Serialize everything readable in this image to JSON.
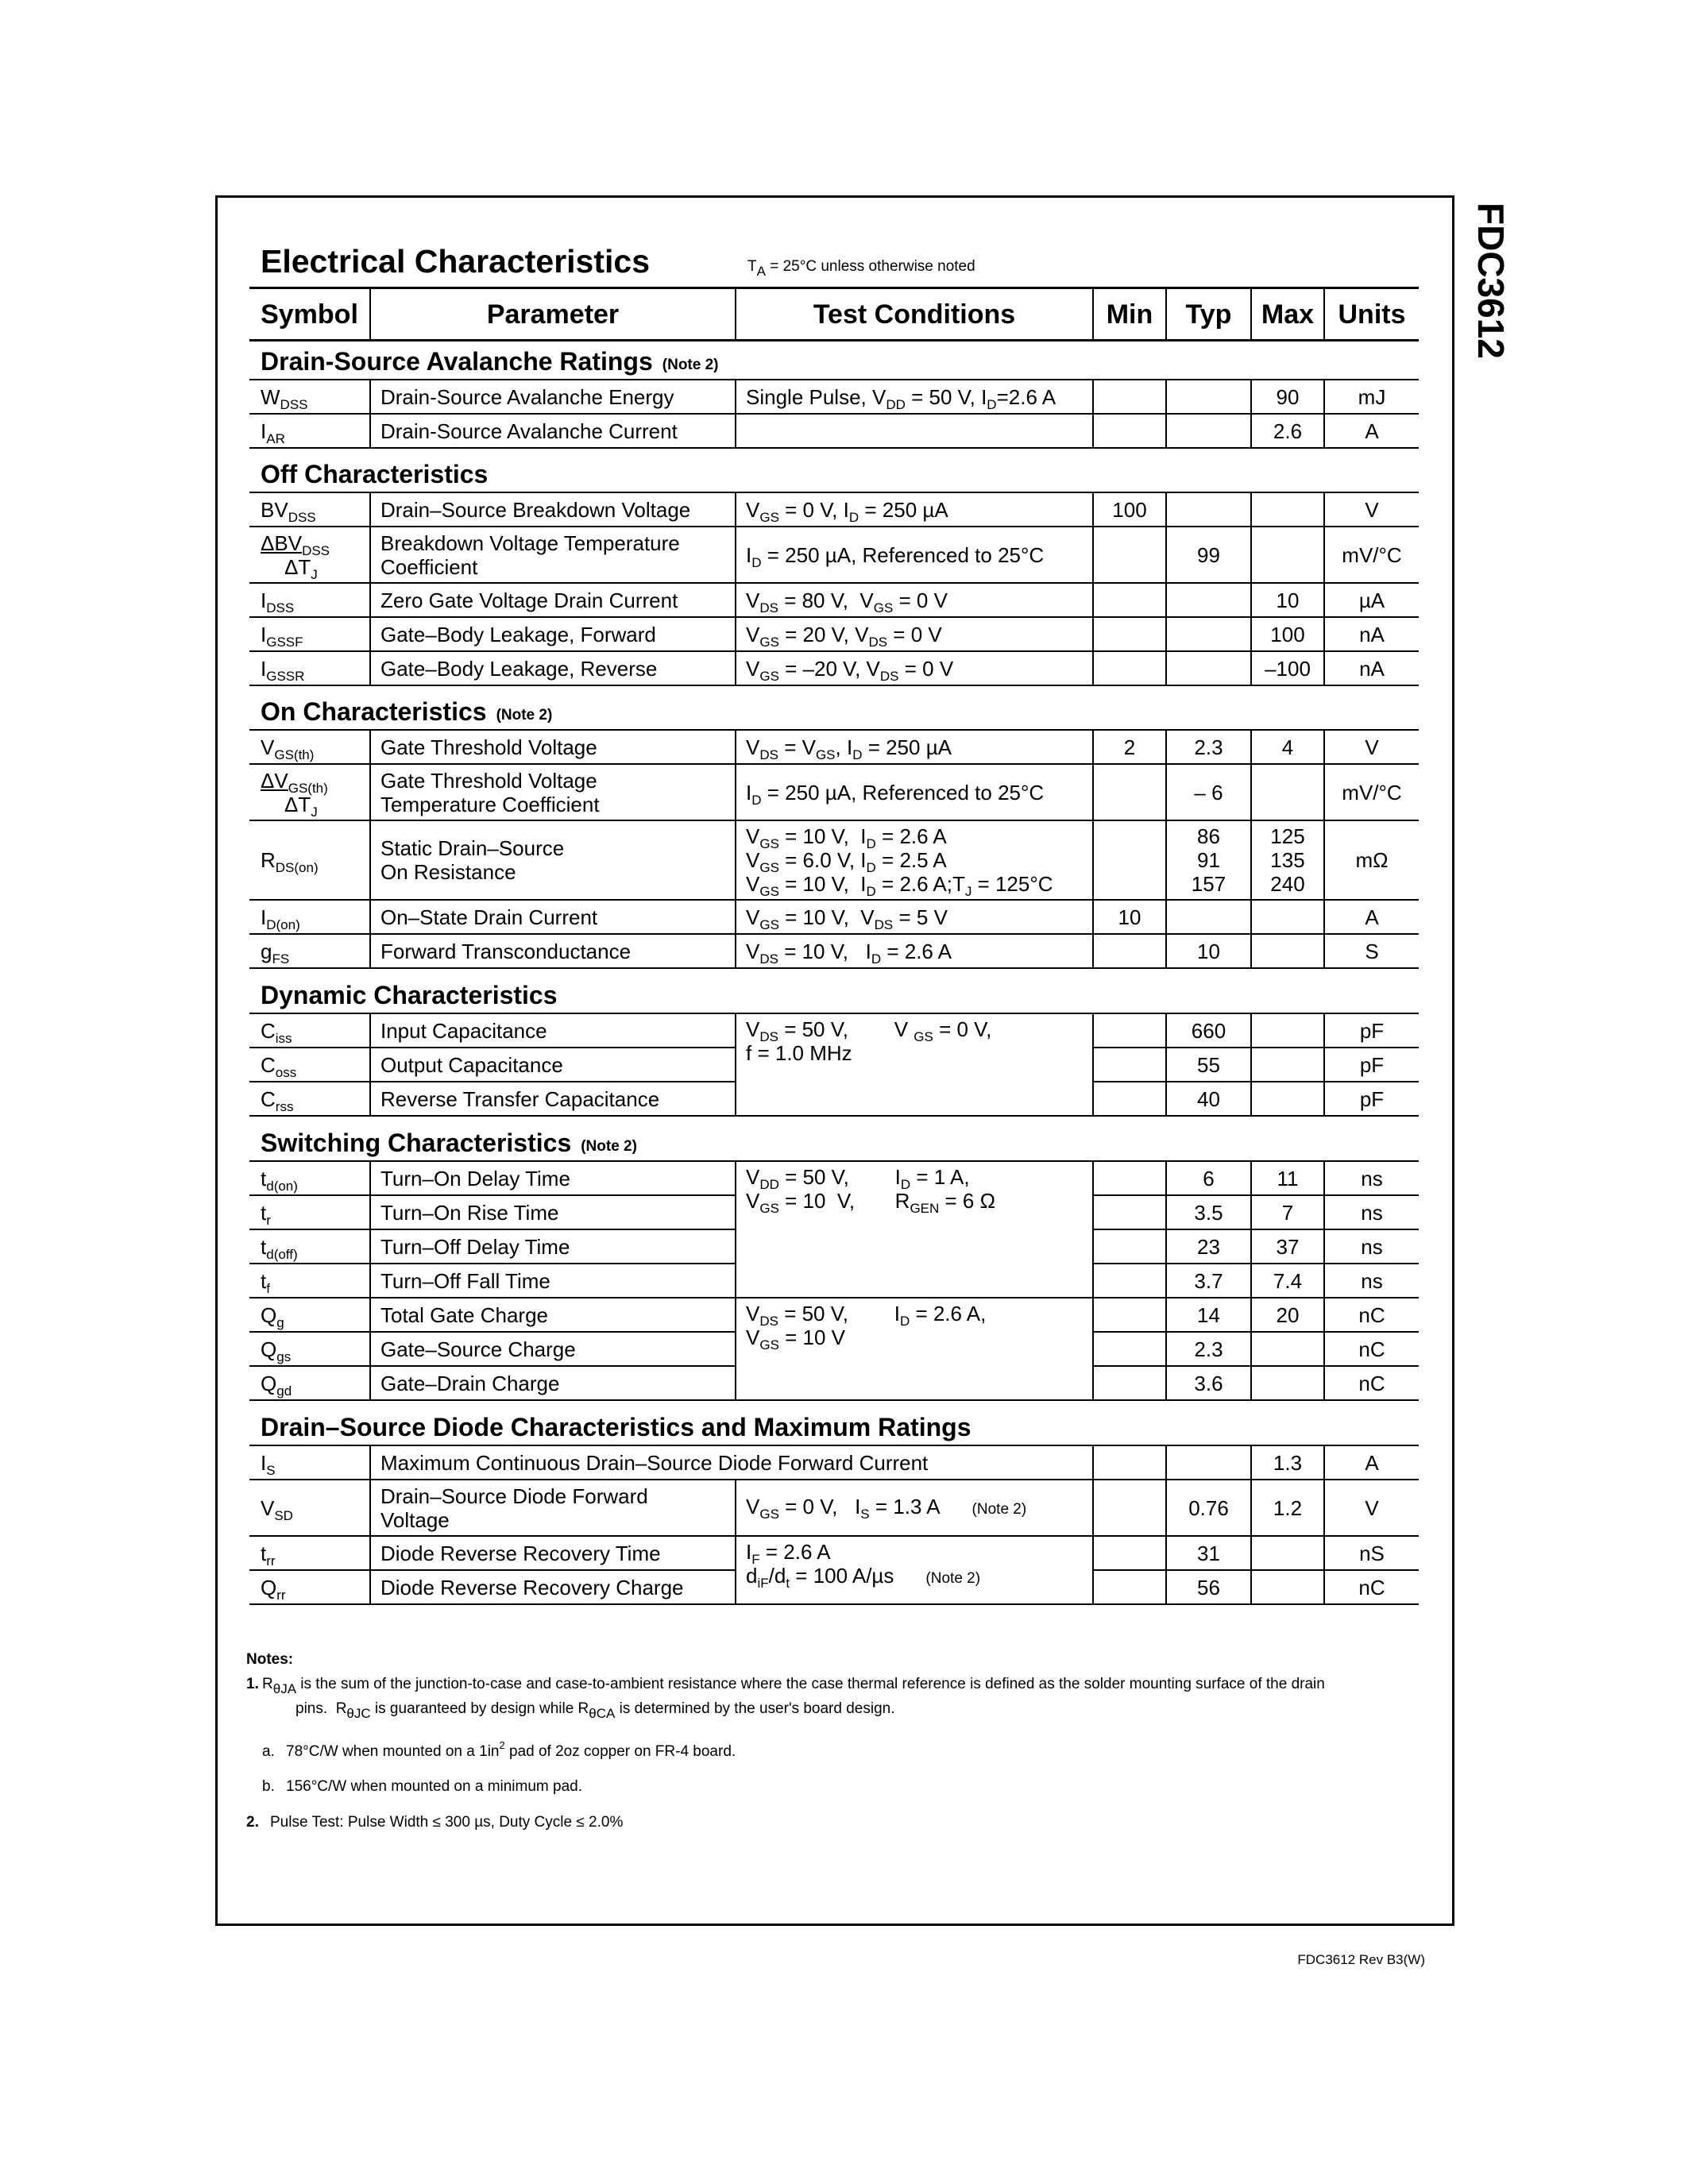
{
  "header": {
    "title": "Electrical Characteristics",
    "condition": [
      "T",
      {
        "sub": "A"
      },
      " = 25°C unless otherwise noted"
    ]
  },
  "side_label": "FDC3612",
  "table": {
    "columns": [
      "Symbol",
      "Parameter",
      "Test Conditions",
      "Min",
      "Typ",
      "Max",
      "Units"
    ],
    "sections": [
      {
        "title": "Drain-Source Avalanche Ratings",
        "note": "(Note 2)",
        "groups": [
          {
            "conditions": [
              "Single Pulse, V",
              {
                "sub": "DD"
              },
              " = 50 V, I",
              {
                "sub": "D"
              },
              "=2.6 A"
            ],
            "rows": [
              {
                "symbol": [
                  "W",
                  {
                    "sub": "DSS"
                  }
                ],
                "parameter": "Drain-Source Avalanche Energy",
                "max": 90,
                "units": "mJ"
              }
            ]
          },
          {
            "rows": [
              {
                "symbol": [
                  "I",
                  {
                    "sub": "AR"
                  }
                ],
                "parameter": "Drain-Source Avalanche Current",
                "max": 2.6,
                "units": "A"
              }
            ]
          }
        ]
      },
      {
        "title": "Off Characteristics",
        "groups": [
          {
            "conditions": [
              "V",
              {
                "sub": "GS"
              },
              " = 0 V, I",
              {
                "sub": "D"
              },
              " = 250 µA"
            ],
            "rows": [
              {
                "symbol": [
                  "BV",
                  {
                    "sub": "DSS"
                  }
                ],
                "parameter": "Drain–Source Breakdown Voltage",
                "min": 100,
                "units": "V"
              }
            ]
          },
          {
            "conditions": [
              "I",
              {
                "sub": "D"
              },
              " = 250 µA, Referenced to 25°C"
            ],
            "rows": [
              {
                "symbol": {
                  "lines": [
                    [
                      "ΔBV",
                      {
                        "sub": "DSS"
                      }
                    ],
                    [
                      "ΔT",
                      {
                        "sub": "J"
                      }
                    ]
                  ]
                },
                "parameter": {
                  "lines": [
                    "Breakdown Voltage Temperature",
                    "Coefficient"
                  ]
                },
                "typ": 99,
                "units": "mV/°C"
              }
            ]
          },
          {
            "conditions": [
              "V",
              {
                "sub": "DS"
              },
              " = 80 V,  V",
              {
                "sub": "GS"
              },
              " = 0 V"
            ],
            "rows": [
              {
                "symbol": [
                  "I",
                  {
                    "sub": "DSS"
                  }
                ],
                "parameter": "Zero Gate Voltage Drain Current",
                "max": 10,
                "units": "µA"
              }
            ]
          },
          {
            "conditions": [
              "V",
              {
                "sub": "GS"
              },
              " = 20 V, V",
              {
                "sub": "DS"
              },
              " = 0 V"
            ],
            "rows": [
              {
                "symbol": [
                  "I",
                  {
                    "sub": "GSSF"
                  }
                ],
                "parameter": "Gate–Body Leakage, Forward",
                "max": 100,
                "units": "nA"
              }
            ]
          },
          {
            "conditions": [
              "V",
              {
                "sub": "GS"
              },
              " = –20 V, V",
              {
                "sub": "DS"
              },
              " = 0 V"
            ],
            "rows": [
              {
                "symbol": [
                  "I",
                  {
                    "sub": "GSSR"
                  }
                ],
                "parameter": "Gate–Body Leakage, Reverse",
                "max": "–100",
                "units": "nA"
              }
            ]
          }
        ]
      },
      {
        "title": "On Characteristics",
        "note": "(Note 2)",
        "groups": [
          {
            "conditions": [
              "V",
              {
                "sub": "DS"
              },
              " = V",
              {
                "sub": "GS"
              },
              ", I",
              {
                "sub": "D"
              },
              " = 250 µA"
            ],
            "rows": [
              {
                "symbol": [
                  "V",
                  {
                    "sub": "GS(th)"
                  }
                ],
                "parameter": "Gate Threshold Voltage",
                "min": 2,
                "typ": 2.3,
                "max": 4,
                "units": "V"
              }
            ]
          },
          {
            "conditions": [
              "I",
              {
                "sub": "D"
              },
              " = 250 µA, Referenced to 25°C"
            ],
            "rows": [
              {
                "symbol": {
                  "lines": [
                    [
                      "ΔV",
                      {
                        "sub": "GS(th)"
                      }
                    ],
                    [
                      "ΔT",
                      {
                        "sub": "J"
                      }
                    ]
                  ]
                },
                "parameter": {
                  "lines": [
                    "Gate Threshold Voltage",
                    "Temperature Coefficient"
                  ]
                },
                "typ": "– 6",
                "units": "mV/°C"
              }
            ]
          },
          {
            "conditions": {
              "lines": [
                [
                  "V",
                  {
                    "sub": "GS"
                  },
                  " = 10 V,  I",
                  {
                    "sub": "D"
                  },
                  " = 2.6 A"
                ],
                [
                  "V",
                  {
                    "sub": "GS"
                  },
                  " = 6.0 V, I",
                  {
                    "sub": "D"
                  },
                  " = 2.5 A"
                ],
                [
                  "V",
                  {
                    "sub": "GS"
                  },
                  " = 10 V,  I",
                  {
                    "sub": "D"
                  },
                  " = 2.6 A;T",
                  {
                    "sub": "J"
                  },
                  " = 125°C"
                ]
              ]
            },
            "rows": [
              {
                "symbol": [
                  "R",
                  {
                    "sub": "DS(on)"
                  }
                ],
                "parameter": {
                  "lines": [
                    "Static Drain–Source",
                    "On Resistance"
                  ]
                },
                "typ": {
                  "lines": [
                    86,
                    91,
                    157
                  ]
                },
                "max": {
                  "lines": [
                    125,
                    135,
                    240
                  ]
                },
                "units": "mΩ"
              }
            ]
          },
          {
            "conditions": [
              "V",
              {
                "sub": "GS"
              },
              " = 10 V,  V",
              {
                "sub": "DS"
              },
              " = 5 V"
            ],
            "rows": [
              {
                "symbol": [
                  "I",
                  {
                    "sub": "D(on)"
                  }
                ],
                "parameter": "On–State Drain Current",
                "min": 10,
                "units": "A"
              }
            ]
          },
          {
            "conditions": [
              "V",
              {
                "sub": "DS"
              },
              " = 10 V,   I",
              {
                "sub": "D"
              },
              " = 2.6 A"
            ],
            "rows": [
              {
                "symbol": [
                  "g",
                  {
                    "sub": "FS"
                  }
                ],
                "parameter": "Forward Transconductance",
                "typ": 10,
                "units": "S"
              }
            ]
          }
        ]
      },
      {
        "title": "Dynamic Characteristics",
        "groups": [
          {
            "conditions": {
              "lines": [
                [
                  "V",
                  {
                    "sub": "DS"
                  },
                  " = 50 V,        V ",
                  {
                    "sub": "GS"
                  },
                  " = 0 V,"
                ],
                "f = 1.0 MHz"
              ]
            },
            "rows": [
              {
                "symbol": [
                  "C",
                  {
                    "sub": "iss"
                  }
                ],
                "parameter": "Input Capacitance",
                "typ": 660,
                "units": "pF"
              },
              {
                "symbol": [
                  "C",
                  {
                    "sub": "oss"
                  }
                ],
                "parameter": "Output Capacitance",
                "typ": 55,
                "units": "pF"
              },
              {
                "symbol": [
                  "C",
                  {
                    "sub": "rss"
                  }
                ],
                "parameter": "Reverse Transfer Capacitance",
                "typ": 40,
                "units": "pF"
              }
            ]
          }
        ]
      },
      {
        "title": "Switching Characteristics",
        "note": "(Note 2)",
        "groups": [
          {
            "conditions": {
              "lines": [
                [
                  "V",
                  {
                    "sub": "DD"
                  },
                  " = 50 V,        I",
                  {
                    "sub": "D"
                  },
                  " = 1 A,"
                ],
                [
                  "V",
                  {
                    "sub": "GS"
                  },
                  " = 10  V,       R",
                  {
                    "sub": "GEN"
                  },
                  " = 6 Ω"
                ]
              ]
            },
            "rows": [
              {
                "symbol": [
                  "t",
                  {
                    "sub": "d(on)"
                  }
                ],
                "parameter": "Turn–On Delay Time",
                "typ": 6,
                "max": 11,
                "units": "ns"
              },
              {
                "symbol": [
                  "t",
                  {
                    "sub": "r"
                  }
                ],
                "parameter": "Turn–On Rise Time",
                "typ": 3.5,
                "max": 7,
                "units": "ns"
              },
              {
                "symbol": [
                  "t",
                  {
                    "sub": "d(off)"
                  }
                ],
                "parameter": "Turn–Off Delay Time",
                "typ": 23,
                "max": 37,
                "units": "ns"
              },
              {
                "symbol": [
                  "t",
                  {
                    "sub": "f"
                  }
                ],
                "parameter": "Turn–Off Fall Time",
                "typ": 3.7,
                "max": 7.4,
                "units": "ns"
              }
            ]
          },
          {
            "conditions": {
              "lines": [
                [
                  "V",
                  {
                    "sub": "DS"
                  },
                  " = 50 V,        I",
                  {
                    "sub": "D"
                  },
                  " = 2.6 A,"
                ],
                [
                  "V",
                  {
                    "sub": "GS"
                  },
                  " = 10 V"
                ]
              ]
            },
            "rows": [
              {
                "symbol": [
                  "Q",
                  {
                    "sub": "g"
                  }
                ],
                "parameter": "Total Gate Charge",
                "typ": 14,
                "max": 20,
                "units": "nC"
              },
              {
                "symbol": [
                  "Q",
                  {
                    "sub": "gs"
                  }
                ],
                "parameter": "Gate–Source Charge",
                "typ": 2.3,
                "units": "nC"
              },
              {
                "symbol": [
                  "Q",
                  {
                    "sub": "gd"
                  }
                ],
                "parameter": "Gate–Drain Charge",
                "typ": 3.6,
                "units": "nC"
              }
            ]
          }
        ]
      },
      {
        "title": "Drain–Source Diode Characteristics and Maximum Ratings",
        "groups": [
          {
            "rows": [
              {
                "symbol": [
                  "I",
                  {
                    "sub": "S"
                  }
                ],
                "description": "Maximum Continuous Drain–Source Diode Forward Current",
                "max": 1.3,
                "units": "A"
              }
            ]
          },
          {
            "conditions": [
              "V",
              {
                "sub": "GS"
              },
              " = 0 V,   I",
              {
                "sub": "S"
              },
              " = 1.3 A",
              {
                "note": "(Note 2)"
              }
            ],
            "rows": [
              {
                "symbol": [
                  "V",
                  {
                    "sub": "SD"
                  }
                ],
                "parameter": {
                  "lines": [
                    "Drain–Source Diode Forward",
                    "Voltage"
                  ]
                },
                "typ": 0.76,
                "max": 1.2,
                "units": "V"
              }
            ]
          },
          {
            "conditions": {
              "lines": [
                [
                  "I",
                  {
                    "sub": "F"
                  },
                  " = 2.6 A"
                ],
                [
                  "d",
                  {
                    "sub": "iF"
                  },
                  "/d",
                  {
                    "sub": "t"
                  },
                  " = 100 A/µs",
                  {
                    "note": "(Note 2)"
                  }
                ]
              ]
            },
            "rows": [
              {
                "symbol": [
                  "t",
                  {
                    "sub": "rr"
                  }
                ],
                "parameter": "Diode Reverse Recovery Time",
                "typ": 31,
                "units": "nS"
              },
              {
                "symbol": [
                  "Q",
                  {
                    "sub": "rr"
                  }
                ],
                "parameter": "Diode Reverse Recovery Charge",
                "typ": 56,
                "units": "nC"
              }
            ]
          }
        ]
      }
    ]
  },
  "notes": {
    "heading": "Notes:",
    "items": [
      {
        "label": "1.",
        "text": {
          "lines": [
            [
              "R",
              {
                "sub": "θJA"
              },
              " is the sum of the junction-to-case and case-to-ambient resistance where the case thermal reference is defined as the solder mounting surface of the drain"
            ],
            [
              "pins.  R",
              {
                "sub": "θJC"
              },
              " is guaranteed by design while R",
              {
                "sub": "θCA"
              },
              " is determined by the user's board design."
            ]
          ]
        }
      },
      {
        "label": "a.",
        "text": [
          "78°C/W when mounted on a 1in",
          {
            "sup": "2"
          },
          " pad of 2oz copper on FR-4 board."
        ]
      },
      {
        "label": "b.",
        "text": "156°C/W when mounted on a minimum pad."
      },
      {
        "label": "2.",
        "text": "Pulse Test: Pulse Width ≤ 300 µs, Duty Cycle ≤ 2.0%"
      }
    ]
  },
  "footer": "FDC3612 Rev B3(W)"
}
